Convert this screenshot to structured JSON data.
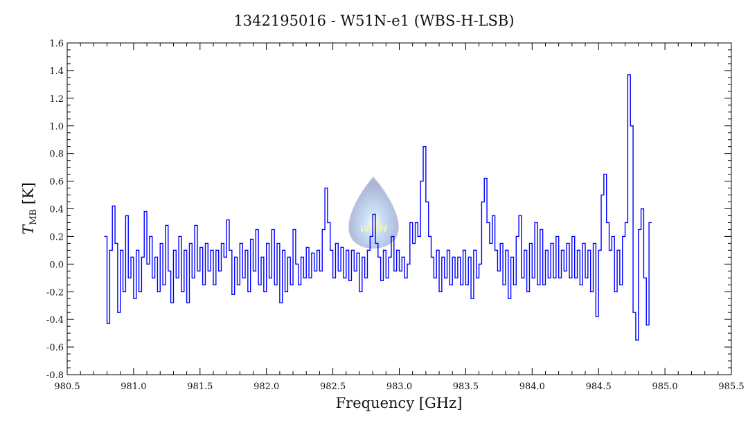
{
  "chart_data": {
    "type": "line",
    "title": "1342195016 - W51N-e1 (WBS-H-LSB)",
    "xlabel": "Frequency [GHz]",
    "ylabel_main": "T",
    "ylabel_sub": "MB",
    "ylabel_unit": "[K]",
    "xlim": [
      980.5,
      985.5
    ],
    "ylim": [
      -0.8,
      1.6
    ],
    "xticks": [
      "980.5",
      "981.0",
      "981.5",
      "982.0",
      "982.5",
      "983.0",
      "983.5",
      "984.0",
      "984.5",
      "985.0",
      "985.5"
    ],
    "yticks": [
      "-0.8",
      "-0.6",
      "-0.4",
      "-0.2",
      "0.0",
      "0.2",
      "0.4",
      "0.6",
      "0.8",
      "1.0",
      "1.2",
      "1.4",
      "1.6"
    ],
    "grid": false,
    "series_color": "#0000ff",
    "logo_text": "WISH",
    "series": [
      {
        "name": "spectrum",
        "x_start": 980.78,
        "x_step": 0.02,
        "values": [
          0.2,
          -0.43,
          0.1,
          0.42,
          0.15,
          -0.35,
          0.1,
          -0.2,
          0.35,
          -0.1,
          0.05,
          -0.25,
          0.1,
          -0.2,
          0.05,
          0.38,
          0.0,
          0.2,
          -0.1,
          0.05,
          -0.2,
          0.15,
          -0.15,
          0.28,
          -0.05,
          -0.28,
          0.1,
          -0.1,
          0.2,
          -0.2,
          0.1,
          -0.28,
          0.15,
          -0.1,
          0.28,
          -0.05,
          0.12,
          -0.15,
          0.15,
          -0.05,
          0.1,
          -0.15,
          0.1,
          -0.05,
          0.15,
          0.05,
          0.32,
          0.1,
          -0.22,
          0.05,
          -0.15,
          0.15,
          -0.1,
          0.1,
          -0.2,
          0.18,
          -0.05,
          0.25,
          -0.15,
          0.05,
          -0.2,
          0.15,
          -0.1,
          0.25,
          -0.15,
          0.15,
          -0.28,
          0.1,
          -0.2,
          0.05,
          -0.15,
          0.25,
          0.0,
          -0.15,
          0.05,
          -0.1,
          0.12,
          -0.1,
          0.08,
          -0.05,
          0.1,
          -0.05,
          0.25,
          0.55,
          0.3,
          0.1,
          -0.1,
          0.15,
          -0.05,
          0.12,
          -0.1,
          0.1,
          -0.12,
          0.1,
          -0.05,
          0.08,
          -0.2,
          0.05,
          -0.1,
          0.1,
          0.2,
          0.36,
          0.15,
          0.05,
          -0.12,
          0.1,
          -0.1,
          0.05,
          0.2,
          -0.05,
          0.1,
          -0.05,
          0.05,
          -0.1,
          0.0,
          0.3,
          0.15,
          0.3,
          0.2,
          0.6,
          0.85,
          0.45,
          0.2,
          0.05,
          -0.1,
          0.1,
          -0.2,
          0.05,
          -0.1,
          0.1,
          -0.15,
          0.05,
          -0.1,
          0.05,
          -0.15,
          0.1,
          -0.15,
          0.05,
          -0.25,
          0.1,
          -0.1,
          0.0,
          0.45,
          0.62,
          0.3,
          0.15,
          0.35,
          0.1,
          -0.05,
          0.15,
          -0.15,
          0.1,
          -0.25,
          0.05,
          -0.15,
          0.2,
          0.35,
          -0.1,
          0.1,
          -0.2,
          0.15,
          -0.1,
          0.3,
          -0.15,
          0.25,
          -0.15,
          0.1,
          -0.1,
          0.15,
          -0.1,
          0.2,
          -0.1,
          0.1,
          -0.05,
          0.15,
          -0.1,
          0.2,
          -0.1,
          0.1,
          -0.15,
          0.15,
          -0.1,
          0.1,
          -0.2,
          0.15,
          -0.38,
          0.1,
          0.5,
          0.65,
          0.3,
          0.1,
          0.2,
          -0.2,
          0.1,
          -0.15,
          0.2,
          0.3,
          1.37,
          1.0,
          -0.35,
          -0.55,
          0.25,
          0.4,
          -0.1,
          -0.44,
          0.3
        ]
      }
    ]
  }
}
